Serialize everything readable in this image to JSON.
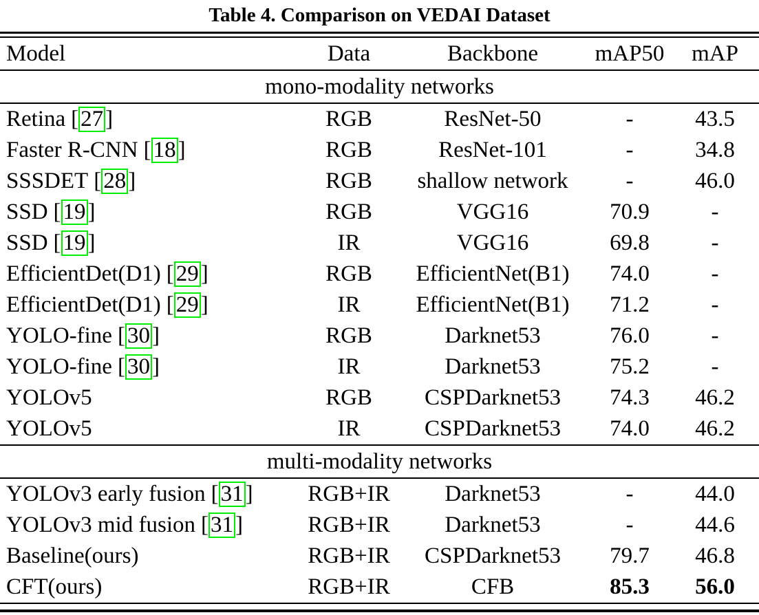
{
  "title": "Table 4. Comparison on VEDAI Dataset",
  "columns": [
    "Model",
    "Data",
    "Backbone",
    "mAP50",
    "mAP"
  ],
  "citation": {
    "open": "[",
    "close": "]"
  },
  "colors": {
    "citation_box": "#00ee00",
    "text": "#000000",
    "background": "#ffffff"
  },
  "chart_data": {
    "type": "table",
    "title": "Table 4. Comparison on VEDAI Dataset",
    "columns": [
      "Model",
      "Data",
      "Backbone",
      "mAP50",
      "mAP"
    ]
  },
  "sections": [
    {
      "label": "mono-modality networks",
      "rows": [
        {
          "model": "Retina",
          "cite": "27",
          "data": "RGB",
          "backbone": "ResNet-50",
          "map50": "-",
          "map": "43.5",
          "bold_metrics": false
        },
        {
          "model": "Faster R-CNN",
          "cite": "18",
          "data": "RGB",
          "backbone": "ResNet-101",
          "map50": "-",
          "map": "34.8",
          "bold_metrics": false
        },
        {
          "model": "SSSDET",
          "cite": "28",
          "data": "RGB",
          "backbone": "shallow network",
          "map50": "-",
          "map": "46.0",
          "bold_metrics": false
        },
        {
          "model": "SSD",
          "cite": "19",
          "data": "RGB",
          "backbone": "VGG16",
          "map50": "70.9",
          "map": "-",
          "bold_metrics": false
        },
        {
          "model": "SSD",
          "cite": "19",
          "data": "IR",
          "backbone": "VGG16",
          "map50": "69.8",
          "map": "-",
          "bold_metrics": false
        },
        {
          "model": "EfficientDet(D1)",
          "cite": "29",
          "data": "RGB",
          "backbone": "EfficientNet(B1)",
          "map50": "74.0",
          "map": "-",
          "bold_metrics": false
        },
        {
          "model": "EfficientDet(D1)",
          "cite": "29",
          "data": "IR",
          "backbone": "EfficientNet(B1)",
          "map50": "71.2",
          "map": "-",
          "bold_metrics": false
        },
        {
          "model": "YOLO-fine",
          "cite": "30",
          "data": "RGB",
          "backbone": "Darknet53",
          "map50": "76.0",
          "map": "-",
          "bold_metrics": false
        },
        {
          "model": "YOLO-fine",
          "cite": "30",
          "data": "IR",
          "backbone": "Darknet53",
          "map50": "75.2",
          "map": "-",
          "bold_metrics": false
        },
        {
          "model": "YOLOv5",
          "cite": null,
          "data": "RGB",
          "backbone": "CSPDarknet53",
          "map50": "74.3",
          "map": "46.2",
          "bold_metrics": false
        },
        {
          "model": "YOLOv5",
          "cite": null,
          "data": "IR",
          "backbone": "CSPDarknet53",
          "map50": "74.0",
          "map": "46.2",
          "bold_metrics": false
        }
      ]
    },
    {
      "label": "multi-modality networks",
      "rows": [
        {
          "model": "YOLOv3 early fusion",
          "cite": "31",
          "data": "RGB+IR",
          "backbone": "Darknet53",
          "map50": "-",
          "map": "44.0",
          "bold_metrics": false
        },
        {
          "model": "YOLOv3 mid fusion",
          "cite": "31",
          "data": "RGB+IR",
          "backbone": "Darknet53",
          "map50": "-",
          "map": "44.6",
          "bold_metrics": false
        },
        {
          "model": "Baseline(ours)",
          "cite": null,
          "data": "RGB+IR",
          "backbone": "CSPDarknet53",
          "map50": "79.7",
          "map": "46.8",
          "bold_metrics": false
        },
        {
          "model": "CFT(ours)",
          "cite": null,
          "data": "RGB+IR",
          "backbone": "CFB",
          "map50": "85.3",
          "map": "56.0",
          "bold_metrics": true
        }
      ]
    }
  ]
}
